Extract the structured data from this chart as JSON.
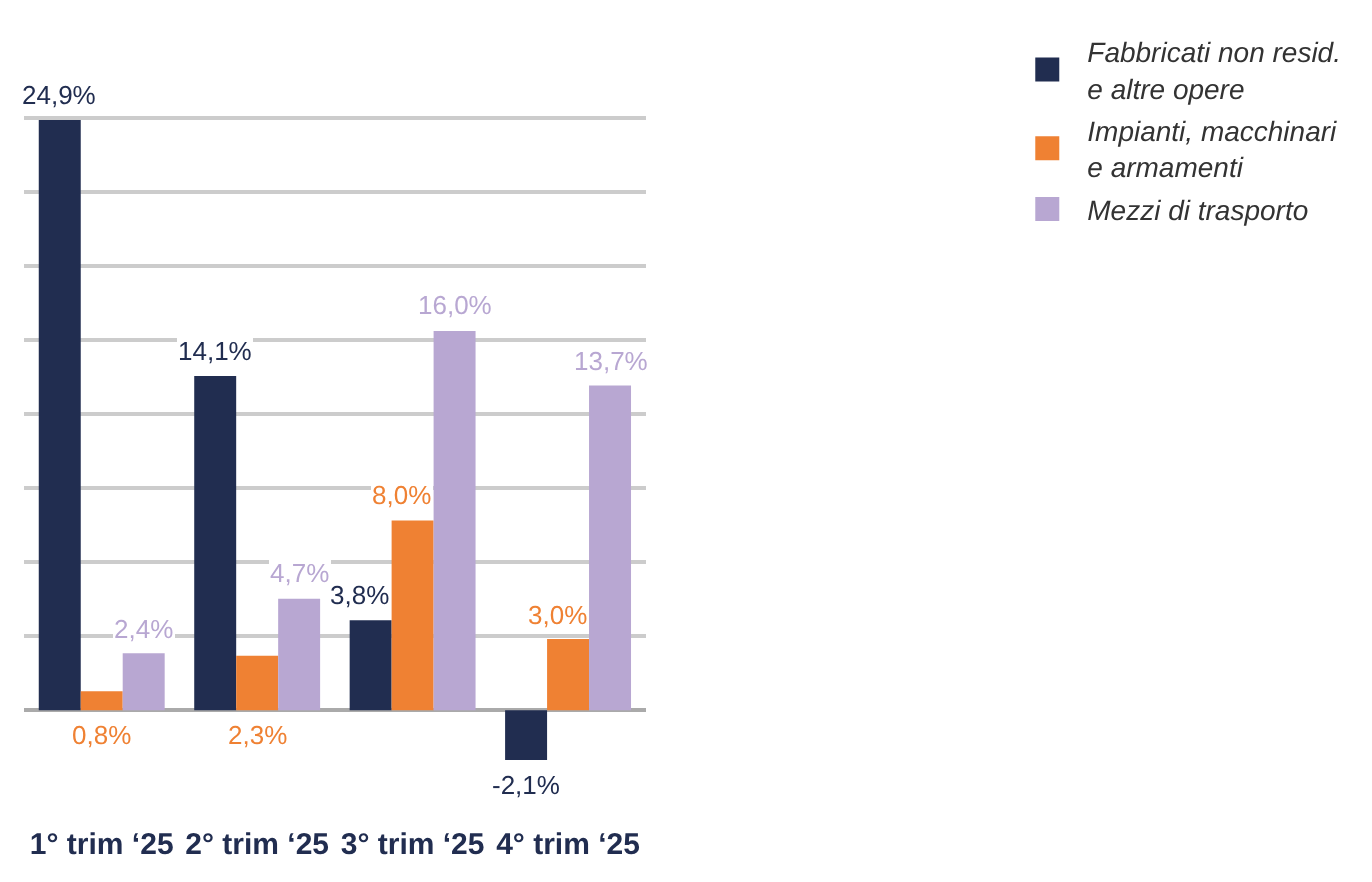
{
  "chart_data": {
    "type": "bar",
    "categories": [
      "1° trim ‘25",
      "2° trim ‘25",
      "3° trim ‘25",
      "4° trim ‘25"
    ],
    "series": [
      {
        "name": "Fabbricati non resid. e altre opere",
        "color": "#212d50",
        "values": [
          24.9,
          14.1,
          3.8,
          -2.1
        ],
        "value_labels": [
          "24,9%",
          "14,1%",
          "3,8%",
          "-2,1%"
        ]
      },
      {
        "name": "Impianti, macchinari e armamenti",
        "color": "#ef8133",
        "values": [
          0.8,
          2.3,
          8.0,
          3.0
        ],
        "value_labels": [
          "0,8%",
          "2,3%",
          "8,0%",
          "3,0%"
        ]
      },
      {
        "name": "Mezzi di trasporto",
        "color": "#b8a7d2",
        "values": [
          2.4,
          4.7,
          16.0,
          13.7
        ],
        "value_labels": [
          "2,4%",
          "4,7%",
          "16,0%",
          "13,7%"
        ]
      }
    ],
    "yticks": [
      {
        "value": 0,
        "label": null
      },
      {
        "value": 3.125,
        "label": null
      },
      {
        "value": 6.25,
        "label": null
      },
      {
        "value": 9.375,
        "label": null
      },
      {
        "value": 12.5,
        "label": null
      },
      {
        "value": 15.625,
        "label": null
      },
      {
        "value": 18.75,
        "label": null
      },
      {
        "value": 21.875,
        "label": null
      },
      {
        "value": 25,
        "label": null
      }
    ],
    "grid": "y",
    "legend": "top right",
    "tick_labels": "x"
  }
}
